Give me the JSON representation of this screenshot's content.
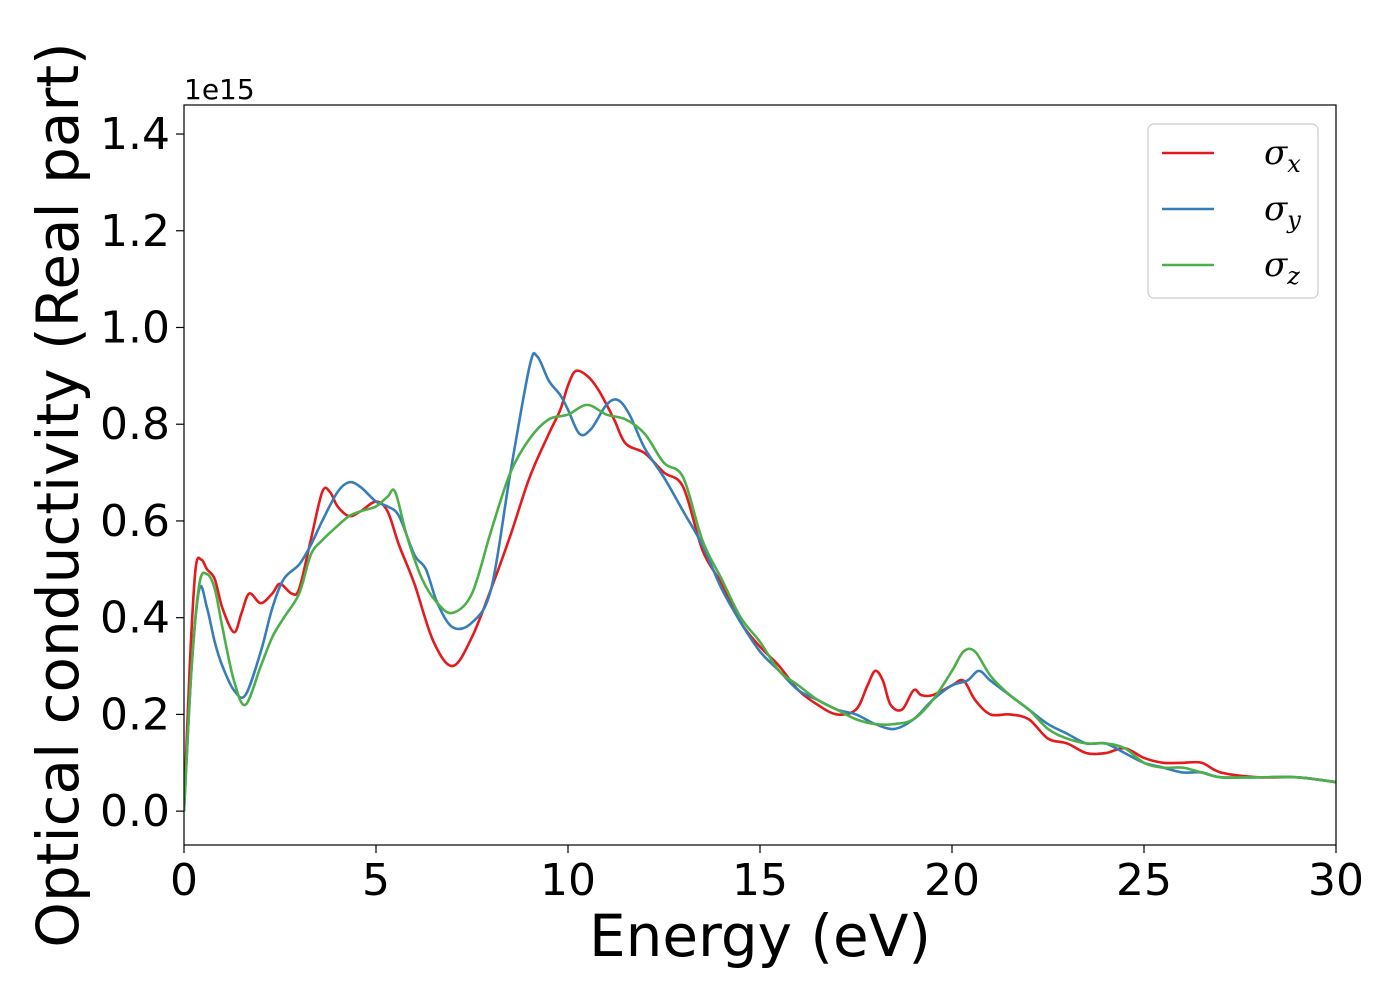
{
  "chart_data": {
    "type": "line",
    "xlabel": "Energy (eV)",
    "ylabel": "Optical conductivity (Real part)",
    "y_offset_label": "1e15",
    "xlim": [
      0,
      30
    ],
    "ylim": [
      -0.07,
      1.46
    ],
    "x_ticks": [
      0,
      5,
      10,
      15,
      20,
      25,
      30
    ],
    "x_tick_labels": [
      "0",
      "5",
      "10",
      "15",
      "20",
      "25",
      "30"
    ],
    "y_ticks": [
      0.0,
      0.2,
      0.4,
      0.6,
      0.8,
      1.0,
      1.2,
      1.4
    ],
    "y_tick_labels": [
      "0.0",
      "0.2",
      "0.4",
      "0.6",
      "0.8",
      "1.0",
      "1.2",
      "1.4"
    ],
    "grid": false,
    "legend_position": "top-right",
    "series": [
      {
        "name": "σ_x",
        "legend_symbol": "σ",
        "legend_sub": "x",
        "color": "#e41a1c",
        "x": [
          0,
          0.15,
          0.3,
          0.45,
          0.6,
          0.8,
          1.0,
          1.3,
          1.5,
          1.7,
          2.0,
          2.3,
          2.5,
          2.8,
          3.0,
          3.3,
          3.6,
          3.8,
          4.0,
          4.3,
          4.6,
          5.0,
          5.3,
          5.6,
          6.0,
          6.5,
          7.0,
          7.5,
          8.0,
          8.5,
          9.0,
          9.5,
          9.8,
          10.0,
          10.2,
          10.5,
          10.8,
          11.2,
          11.5,
          12.0,
          12.5,
          13.0,
          13.5,
          14.0,
          14.5,
          15.0,
          15.5,
          16.0,
          16.5,
          17.0,
          17.5,
          17.8,
          18.0,
          18.2,
          18.4,
          18.7,
          19.0,
          19.2,
          19.5,
          20.0,
          20.3,
          20.6,
          21.0,
          21.5,
          22.0,
          22.5,
          23.0,
          23.5,
          24.0,
          24.5,
          25.0,
          25.5,
          26.0,
          26.5,
          27.0,
          28.0,
          29.0,
          30.0
        ],
        "y": [
          0.0,
          0.3,
          0.5,
          0.52,
          0.5,
          0.48,
          0.42,
          0.37,
          0.41,
          0.45,
          0.43,
          0.45,
          0.47,
          0.45,
          0.46,
          0.56,
          0.66,
          0.66,
          0.63,
          0.61,
          0.62,
          0.64,
          0.62,
          0.55,
          0.47,
          0.35,
          0.3,
          0.36,
          0.46,
          0.57,
          0.69,
          0.78,
          0.83,
          0.88,
          0.91,
          0.9,
          0.87,
          0.81,
          0.76,
          0.74,
          0.7,
          0.67,
          0.54,
          0.47,
          0.39,
          0.34,
          0.3,
          0.25,
          0.22,
          0.2,
          0.21,
          0.26,
          0.29,
          0.27,
          0.22,
          0.21,
          0.25,
          0.24,
          0.24,
          0.26,
          0.27,
          0.23,
          0.2,
          0.2,
          0.19,
          0.15,
          0.14,
          0.12,
          0.12,
          0.13,
          0.11,
          0.1,
          0.1,
          0.1,
          0.08,
          0.07,
          0.07,
          0.06
        ]
      },
      {
        "name": "σ_y",
        "legend_symbol": "σ",
        "legend_sub": "y",
        "color": "#377eb8",
        "x": [
          0,
          0.2,
          0.4,
          0.6,
          0.8,
          1.0,
          1.3,
          1.6,
          2.0,
          2.3,
          2.6,
          3.0,
          3.3,
          3.6,
          4.0,
          4.3,
          4.6,
          5.0,
          5.3,
          5.6,
          6.0,
          6.3,
          6.6,
          7.0,
          7.5,
          8.0,
          8.5,
          9.0,
          9.2,
          9.5,
          9.8,
          10.0,
          10.3,
          10.6,
          11.0,
          11.3,
          11.6,
          12.0,
          12.5,
          13.0,
          13.5,
          14.0,
          14.5,
          15.0,
          15.5,
          16.0,
          16.5,
          17.0,
          17.5,
          18.0,
          18.5,
          19.0,
          19.5,
          20.0,
          20.4,
          20.7,
          21.0,
          21.5,
          22.0,
          22.5,
          23.0,
          23.5,
          24.0,
          24.5,
          25.0,
          25.5,
          26.0,
          26.5,
          27.0,
          28.0,
          29.0,
          30.0
        ],
        "y": [
          0.0,
          0.3,
          0.46,
          0.42,
          0.35,
          0.3,
          0.25,
          0.24,
          0.33,
          0.42,
          0.48,
          0.51,
          0.55,
          0.6,
          0.66,
          0.68,
          0.67,
          0.64,
          0.63,
          0.61,
          0.53,
          0.5,
          0.43,
          0.38,
          0.39,
          0.46,
          0.7,
          0.92,
          0.94,
          0.89,
          0.86,
          0.83,
          0.78,
          0.79,
          0.84,
          0.85,
          0.82,
          0.75,
          0.69,
          0.62,
          0.55,
          0.46,
          0.39,
          0.33,
          0.29,
          0.25,
          0.23,
          0.21,
          0.2,
          0.18,
          0.17,
          0.19,
          0.23,
          0.26,
          0.27,
          0.29,
          0.27,
          0.24,
          0.21,
          0.18,
          0.16,
          0.14,
          0.14,
          0.12,
          0.1,
          0.09,
          0.08,
          0.08,
          0.07,
          0.07,
          0.07,
          0.06
        ]
      },
      {
        "name": "σ_z",
        "legend_symbol": "σ",
        "legend_sub": "z",
        "color": "#4daf4a",
        "x": [
          0,
          0.2,
          0.4,
          0.6,
          0.8,
          1.0,
          1.3,
          1.6,
          2.0,
          2.3,
          2.6,
          3.0,
          3.3,
          3.6,
          4.0,
          4.3,
          4.6,
          5.0,
          5.3,
          5.5,
          5.8,
          6.2,
          6.6,
          7.0,
          7.5,
          8.0,
          8.5,
          9.0,
          9.5,
          10.0,
          10.5,
          11.0,
          11.5,
          12.0,
          12.5,
          13.0,
          13.5,
          14.0,
          14.5,
          15.0,
          15.5,
          16.0,
          16.5,
          17.0,
          17.5,
          18.0,
          18.5,
          19.0,
          19.5,
          20.0,
          20.3,
          20.6,
          21.0,
          21.5,
          22.0,
          22.5,
          23.0,
          23.5,
          24.0,
          24.5,
          25.0,
          25.5,
          26.0,
          26.5,
          27.0,
          28.0,
          29.0,
          30.0
        ],
        "y": [
          0.0,
          0.3,
          0.47,
          0.49,
          0.46,
          0.38,
          0.27,
          0.22,
          0.3,
          0.36,
          0.4,
          0.45,
          0.53,
          0.56,
          0.59,
          0.61,
          0.62,
          0.63,
          0.65,
          0.66,
          0.57,
          0.48,
          0.43,
          0.41,
          0.45,
          0.58,
          0.7,
          0.77,
          0.81,
          0.82,
          0.84,
          0.82,
          0.81,
          0.78,
          0.72,
          0.69,
          0.56,
          0.48,
          0.4,
          0.35,
          0.29,
          0.26,
          0.23,
          0.21,
          0.19,
          0.18,
          0.18,
          0.19,
          0.23,
          0.29,
          0.33,
          0.33,
          0.28,
          0.24,
          0.21,
          0.17,
          0.15,
          0.14,
          0.14,
          0.13,
          0.1,
          0.09,
          0.09,
          0.08,
          0.07,
          0.07,
          0.07,
          0.06
        ]
      }
    ]
  }
}
